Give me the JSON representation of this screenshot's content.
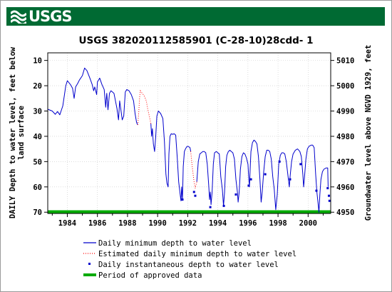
{
  "banner": {
    "logo_text": "USGS",
    "color": "#006a33"
  },
  "chart_data": {
    "type": "line",
    "title": "USGS 382020112585901  (C-28-10)28cdd- 1",
    "ylabel": "DAILY Depth to water level, feet below land surface",
    "ylabel_lines": [
      "DAILY Depth to water level, feet below",
      "land surface"
    ],
    "y2label": "Groundwater level above NGVD 1929, feet",
    "xlim": [
      1982.7,
      2001.5
    ],
    "ylim": [
      7,
      70.5
    ],
    "y_inverted": true,
    "y2_transform": "elevation = 5020 - depth",
    "y2lim": [
      5013,
      4949.5
    ],
    "x_ticks": [
      1984,
      1986,
      1988,
      1990,
      1992,
      1994,
      1996,
      1998,
      2000
    ],
    "y_ticks": [
      10,
      20,
      30,
      40,
      50,
      60,
      70
    ],
    "y2_ticks": [
      5010,
      5000,
      4990,
      4980,
      4970,
      4960,
      4950
    ],
    "grid": true,
    "legend_position": "bottom",
    "series": [
      {
        "name": "Daily minimum depth to water level",
        "style": "line",
        "color": "#0000cc",
        "points": [
          [
            1982.7,
            29.3
          ],
          [
            1983.0,
            30.0
          ],
          [
            1983.2,
            31.3
          ],
          [
            1983.35,
            30.2
          ],
          [
            1983.5,
            31.5
          ],
          [
            1983.7,
            28.0
          ],
          [
            1983.9,
            20.0
          ],
          [
            1984.0,
            18.0
          ],
          [
            1984.2,
            19.5
          ],
          [
            1984.35,
            21.0
          ],
          [
            1984.45,
            25.0
          ],
          [
            1984.55,
            20.5
          ],
          [
            1984.7,
            19.0
          ],
          [
            1984.8,
            17.8
          ],
          [
            1985.0,
            16.0
          ],
          [
            1985.15,
            13.0
          ],
          [
            1985.3,
            14.0
          ],
          [
            1985.5,
            17.0
          ],
          [
            1985.65,
            19.5
          ],
          [
            1985.75,
            22.0
          ],
          [
            1985.82,
            20.5
          ],
          [
            1985.95,
            23.5
          ],
          [
            1986.0,
            18.5
          ],
          [
            1986.15,
            17.0
          ],
          [
            1986.3,
            19.5
          ],
          [
            1986.45,
            21.5
          ],
          [
            1986.55,
            28.5
          ],
          [
            1986.62,
            23.0
          ],
          [
            1986.7,
            29.5
          ],
          [
            1986.8,
            23.0
          ],
          [
            1986.9,
            22.0
          ],
          [
            1987.0,
            22.5
          ],
          [
            1987.1,
            23.0
          ],
          [
            1987.2,
            26.0
          ],
          [
            1987.3,
            29.0
          ],
          [
            1987.4,
            33.5
          ],
          [
            1987.48,
            26.0
          ],
          [
            1987.55,
            29.0
          ],
          [
            1987.65,
            33.5
          ],
          [
            1987.75,
            32.0
          ],
          [
            1987.85,
            22.5
          ],
          [
            1987.95,
            21.5
          ],
          [
            1988.1,
            22.0
          ],
          [
            1988.25,
            23.5
          ],
          [
            1988.4,
            26.0
          ],
          [
            1988.5,
            31.0
          ],
          [
            1988.6,
            34.5
          ],
          [
            1988.68,
            35.5
          ]
        ],
        "breaks_after": [],
        "points2": [
          [
            1989.55,
            35.0
          ],
          [
            1989.6,
            40.0
          ],
          [
            1989.65,
            37.0
          ],
          [
            1989.72,
            43.0
          ],
          [
            1989.8,
            46.0
          ],
          [
            1989.87,
            40.5
          ],
          [
            1989.95,
            32.0
          ],
          [
            1990.05,
            30.0
          ],
          [
            1990.2,
            31.0
          ],
          [
            1990.35,
            33.0
          ],
          [
            1990.45,
            42.0
          ],
          [
            1990.55,
            55.0
          ],
          [
            1990.62,
            58.5
          ],
          [
            1990.7,
            60.0
          ],
          [
            1990.75,
            47.0
          ],
          [
            1990.82,
            40.0
          ],
          [
            1990.9,
            39.0
          ],
          [
            1991.0,
            39.2
          ],
          [
            1991.1,
            39.0
          ],
          [
            1991.2,
            39.5
          ],
          [
            1991.3,
            48.0
          ],
          [
            1991.4,
            58.0
          ],
          [
            1991.5,
            63.0
          ],
          [
            1991.55,
            65.5
          ],
          [
            1991.6,
            60.0
          ],
          [
            1991.65,
            65.0
          ],
          [
            1991.7,
            52.0
          ],
          [
            1991.78,
            46.0
          ],
          [
            1991.85,
            45.0
          ],
          [
            1991.95,
            44.0
          ],
          [
            1992.05,
            44.0
          ],
          [
            1992.15,
            44.5
          ],
          [
            1992.2,
            46.0
          ]
        ],
        "segments": [
          [
            [
              1992.6,
              58.0
            ],
            [
              1992.7,
              50.0
            ],
            [
              1992.8,
              47.0
            ],
            [
              1992.9,
              46.5
            ],
            [
              1993.0,
              46.0
            ],
            [
              1993.1,
              46.0
            ],
            [
              1993.2,
              46.5
            ],
            [
              1993.3,
              51.0
            ],
            [
              1993.4,
              60.0
            ],
            [
              1993.45,
              65.0
            ],
            [
              1993.5,
              62.0
            ],
            [
              1993.55,
              67.0
            ],
            [
              1993.62,
              62.0
            ],
            [
              1993.7,
              51.0
            ],
            [
              1993.78,
              46.5
            ],
            [
              1993.9,
              46.0
            ],
            [
              1994.0,
              46.5
            ],
            [
              1994.1,
              47.0
            ],
            [
              1994.2,
              56.0
            ],
            [
              1994.3,
              61.0
            ],
            [
              1994.38,
              67.5
            ],
            [
              1994.45,
              62.0
            ],
            [
              1994.52,
              52.0
            ],
            [
              1994.6,
              47.5
            ],
            [
              1994.7,
              46.0
            ],
            [
              1994.8,
              45.5
            ],
            [
              1994.9,
              46.0
            ],
            [
              1995.0,
              46.5
            ],
            [
              1995.1,
              49.0
            ],
            [
              1995.2,
              57.0
            ],
            [
              1995.3,
              62.0
            ],
            [
              1995.35,
              66.0
            ],
            [
              1995.42,
              62.0
            ],
            [
              1995.5,
              53.0
            ],
            [
              1995.6,
              48.0
            ],
            [
              1995.7,
              46.5
            ],
            [
              1995.8,
              47.0
            ],
            [
              1995.9,
              48.5
            ],
            [
              1996.0,
              51.0
            ],
            [
              1996.05,
              56.0
            ],
            [
              1996.1,
              60.0
            ],
            [
              1996.15,
              53.0
            ],
            [
              1996.2,
              46.0
            ],
            [
              1996.3,
              42.5
            ],
            [
              1996.4,
              41.5
            ],
            [
              1996.5,
              42.0
            ],
            [
              1996.6,
              43.0
            ],
            [
              1996.7,
              48.0
            ],
            [
              1996.8,
              57.0
            ],
            [
              1996.88,
              66.0
            ],
            [
              1996.95,
              62.0
            ],
            [
              1997.05,
              54.0
            ],
            [
              1997.15,
              48.0
            ],
            [
              1997.25,
              45.5
            ],
            [
              1997.35,
              45.5
            ],
            [
              1997.45,
              46.0
            ],
            [
              1997.55,
              49.0
            ],
            [
              1997.65,
              56.0
            ],
            [
              1997.75,
              61.0
            ],
            [
              1997.85,
              69.0
            ],
            [
              1997.95,
              63.0
            ],
            [
              1998.05,
              51.0
            ],
            [
              1998.15,
              47.5
            ],
            [
              1998.25,
              46.5
            ],
            [
              1998.35,
              46.5
            ],
            [
              1998.45,
              47.0
            ],
            [
              1998.55,
              50.0
            ],
            [
              1998.65,
              55.0
            ],
            [
              1998.75,
              60.0
            ],
            [
              1998.8,
              56.0
            ],
            [
              1998.9,
              50.0
            ],
            [
              1999.0,
              47.0
            ],
            [
              1999.15,
              45.5
            ],
            [
              1999.3,
              45.0
            ],
            [
              1999.45,
              46.0
            ],
            [
              1999.55,
              48.0
            ],
            [
              1999.65,
              55.0
            ],
            [
              1999.7,
              60.0
            ],
            [
              1999.75,
              57.0
            ],
            [
              1999.85,
              49.0
            ],
            [
              1999.95,
              45.0
            ],
            [
              2000.05,
              44.0
            ],
            [
              2000.2,
              43.5
            ],
            [
              2000.3,
              43.5
            ],
            [
              2000.4,
              44.5
            ],
            [
              2000.5,
              55.0
            ],
            [
              2000.58,
              62.0
            ],
            [
              2000.65,
              66.0
            ],
            [
              2000.72,
              70.0
            ],
            [
              2000.78,
              63.0
            ],
            [
              2000.85,
              57.0
            ],
            [
              2000.95,
              54.0
            ],
            [
              2001.05,
              53.0
            ],
            [
              2001.2,
              52.5
            ],
            [
              2001.3,
              52.5
            ],
            [
              2001.33,
              60.0
            ]
          ]
        ]
      },
      {
        "name": "Estimated daily minimum depth to water level",
        "style": "dotted",
        "color": "#ff0000",
        "segments": [
          [
            [
              1988.68,
              35.5
            ],
            [
              1988.75,
              30.0
            ],
            [
              1988.8,
              25.0
            ],
            [
              1988.85,
              22.0
            ],
            [
              1988.95,
              22.8
            ],
            [
              1989.05,
              23.5
            ],
            [
              1989.15,
              24.5
            ],
            [
              1989.25,
              26.0
            ],
            [
              1989.35,
              29.5
            ],
            [
              1989.45,
              32.0
            ],
            [
              1989.55,
              35.0
            ]
          ],
          [
            [
              1992.2,
              46.0
            ],
            [
              1992.3,
              52.0
            ],
            [
              1992.42,
              58.0
            ],
            [
              1992.5,
              60.5
            ],
            [
              1992.6,
              58.0
            ]
          ]
        ]
      },
      {
        "name": "Daily instantaneous depth to water level",
        "style": "points",
        "color": "#0000cc",
        "points": [
          [
            1991.65,
            65.0
          ],
          [
            1992.42,
            62.0
          ],
          [
            1992.5,
            63.5
          ],
          [
            1993.5,
            68.0
          ],
          [
            1994.4,
            67.5
          ],
          [
            1995.2,
            63.0
          ],
          [
            1996.05,
            59.5
          ],
          [
            1996.2,
            57.0
          ],
          [
            1997.15,
            55.0
          ],
          [
            1998.1,
            50.0
          ],
          [
            1998.8,
            57.0
          ],
          [
            1999.5,
            51.0
          ],
          [
            2000.55,
            61.5
          ],
          [
            2001.3,
            60.5
          ],
          [
            2001.38,
            63.5
          ],
          [
            2001.42,
            65.5
          ]
        ]
      },
      {
        "name": "Period of approved data",
        "style": "bar",
        "color": "#00aa00",
        "x_range": [
          1982.7,
          2001.5
        ],
        "y": 69.8
      }
    ]
  },
  "legend": [
    {
      "label": "Daily minimum depth to water level",
      "kind": "line",
      "color": "#0000cc"
    },
    {
      "label": "Estimated daily minimum depth to water level",
      "kind": "dotted",
      "color": "#ff0000"
    },
    {
      "label": "Daily instantaneous depth to water level",
      "kind": "point",
      "color": "#0000cc"
    },
    {
      "label": "Period of approved data",
      "kind": "bar",
      "color": "#00aa00"
    }
  ]
}
